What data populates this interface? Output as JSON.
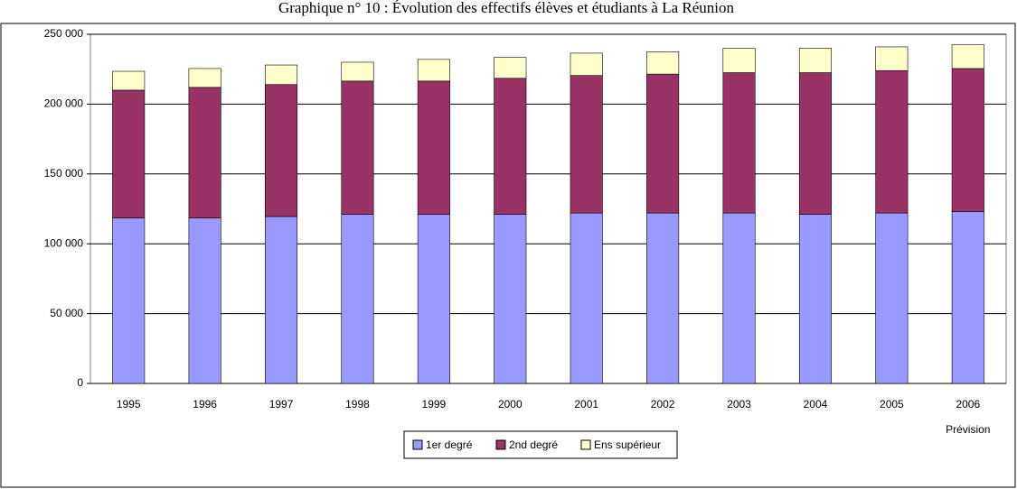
{
  "chart_data": {
    "type": "stacked_bar",
    "title": "Graphique n° 10 : Évolution des effectifs élèves et étudiants à La Réunion",
    "categories": [
      "1995",
      "1996",
      "1997",
      "1998",
      "1999",
      "2000",
      "2001",
      "2002",
      "2003",
      "2004",
      "2005",
      "2006"
    ],
    "annotation": "Prévision",
    "series": [
      {
        "name": "1er degré",
        "color": "#9999ff",
        "values": [
          118500,
          118500,
          119500,
          121000,
          121000,
          121000,
          122000,
          122000,
          122000,
          121000,
          122000,
          123000
        ]
      },
      {
        "name": "2nd degré",
        "color": "#993366",
        "values": [
          91500,
          93500,
          94500,
          95500,
          95500,
          97500,
          98500,
          99500,
          100500,
          101500,
          102000,
          102500
        ]
      },
      {
        "name": "Ens supérieur",
        "color": "#ffffcc",
        "values": [
          13500,
          13500,
          14000,
          13500,
          15500,
          15000,
          16000,
          16000,
          17500,
          17500,
          17000,
          17000
        ]
      }
    ],
    "ylim": [
      0,
      250000
    ],
    "yticks": [
      0,
      {
        "value": 50000,
        "label": "50 000"
      },
      {
        "value": 100000,
        "label": "100 000"
      },
      {
        "value": 150000,
        "label": "150 000"
      },
      {
        "value": 200000,
        "label": "200 000"
      },
      {
        "value": 250000,
        "label": "250 000"
      }
    ],
    "grid": true,
    "legend": "bottom"
  }
}
